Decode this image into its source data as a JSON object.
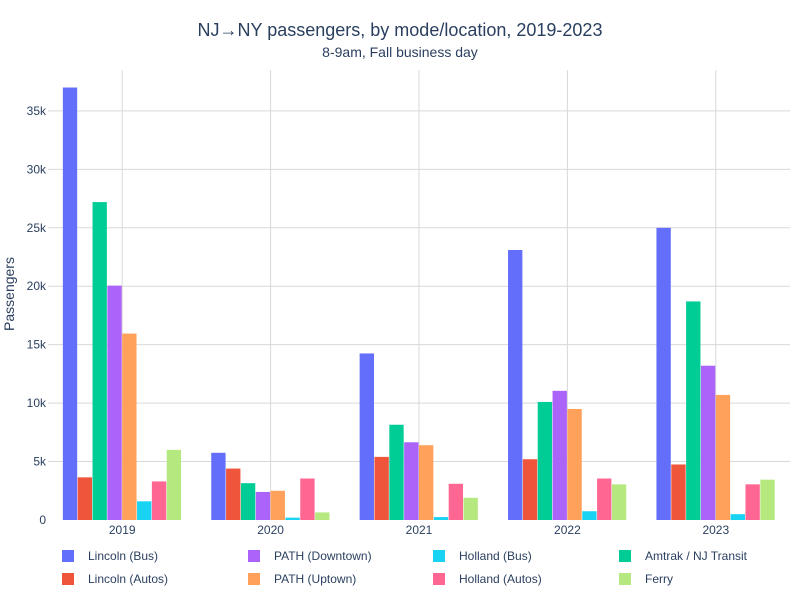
{
  "chart_data": {
    "type": "bar",
    "title": "NJ→NY passengers, by mode/location, 2019-2023",
    "subtitle": "8-9am, Fall business day",
    "xlabel": "",
    "ylabel": "Passengers",
    "ylim": [
      0,
      38500
    ],
    "yticks": [
      0,
      5000,
      10000,
      15000,
      20000,
      25000,
      30000,
      35000
    ],
    "ytick_labels": [
      "0",
      "5k",
      "10k",
      "15k",
      "20k",
      "25k",
      "30k",
      "35k"
    ],
    "grid": true,
    "legend_position": "bottom",
    "categories": [
      "2019",
      "2020",
      "2021",
      "2022",
      "2023"
    ],
    "series": [
      {
        "name": "Lincoln (Bus)",
        "color": "#636efa",
        "values": [
          37000,
          5750,
          14250,
          23100,
          25000
        ]
      },
      {
        "name": "Lincoln (Autos)",
        "color": "#ef553b",
        "values": [
          3650,
          4400,
          5400,
          5200,
          4750
        ]
      },
      {
        "name": "Amtrak / NJ Transit",
        "color": "#00cc96",
        "values": [
          27200,
          3150,
          8150,
          10100,
          18700
        ]
      },
      {
        "name": "PATH (Downtown)",
        "color": "#ab63fa",
        "values": [
          20050,
          2400,
          6650,
          11050,
          13200
        ]
      },
      {
        "name": "PATH (Uptown)",
        "color": "#ffa15a",
        "values": [
          15950,
          2500,
          6400,
          9500,
          10700
        ]
      },
      {
        "name": "Holland (Bus)",
        "color": "#19d3f3",
        "values": [
          1600,
          200,
          250,
          750,
          500
        ]
      },
      {
        "name": "Holland (Autos)",
        "color": "#ff6692",
        "values": [
          3300,
          3550,
          3100,
          3550,
          3050
        ]
      },
      {
        "name": "Ferry",
        "color": "#b6e880",
        "values": [
          6000,
          650,
          1900,
          3050,
          3450
        ]
      }
    ],
    "legend_order": [
      "Lincoln (Bus)",
      "Lincoln (Autos)",
      "PATH (Downtown)",
      "PATH (Uptown)",
      "Holland (Bus)",
      "Holland (Autos)",
      "Amtrak / NJ Transit",
      "Ferry"
    ]
  }
}
